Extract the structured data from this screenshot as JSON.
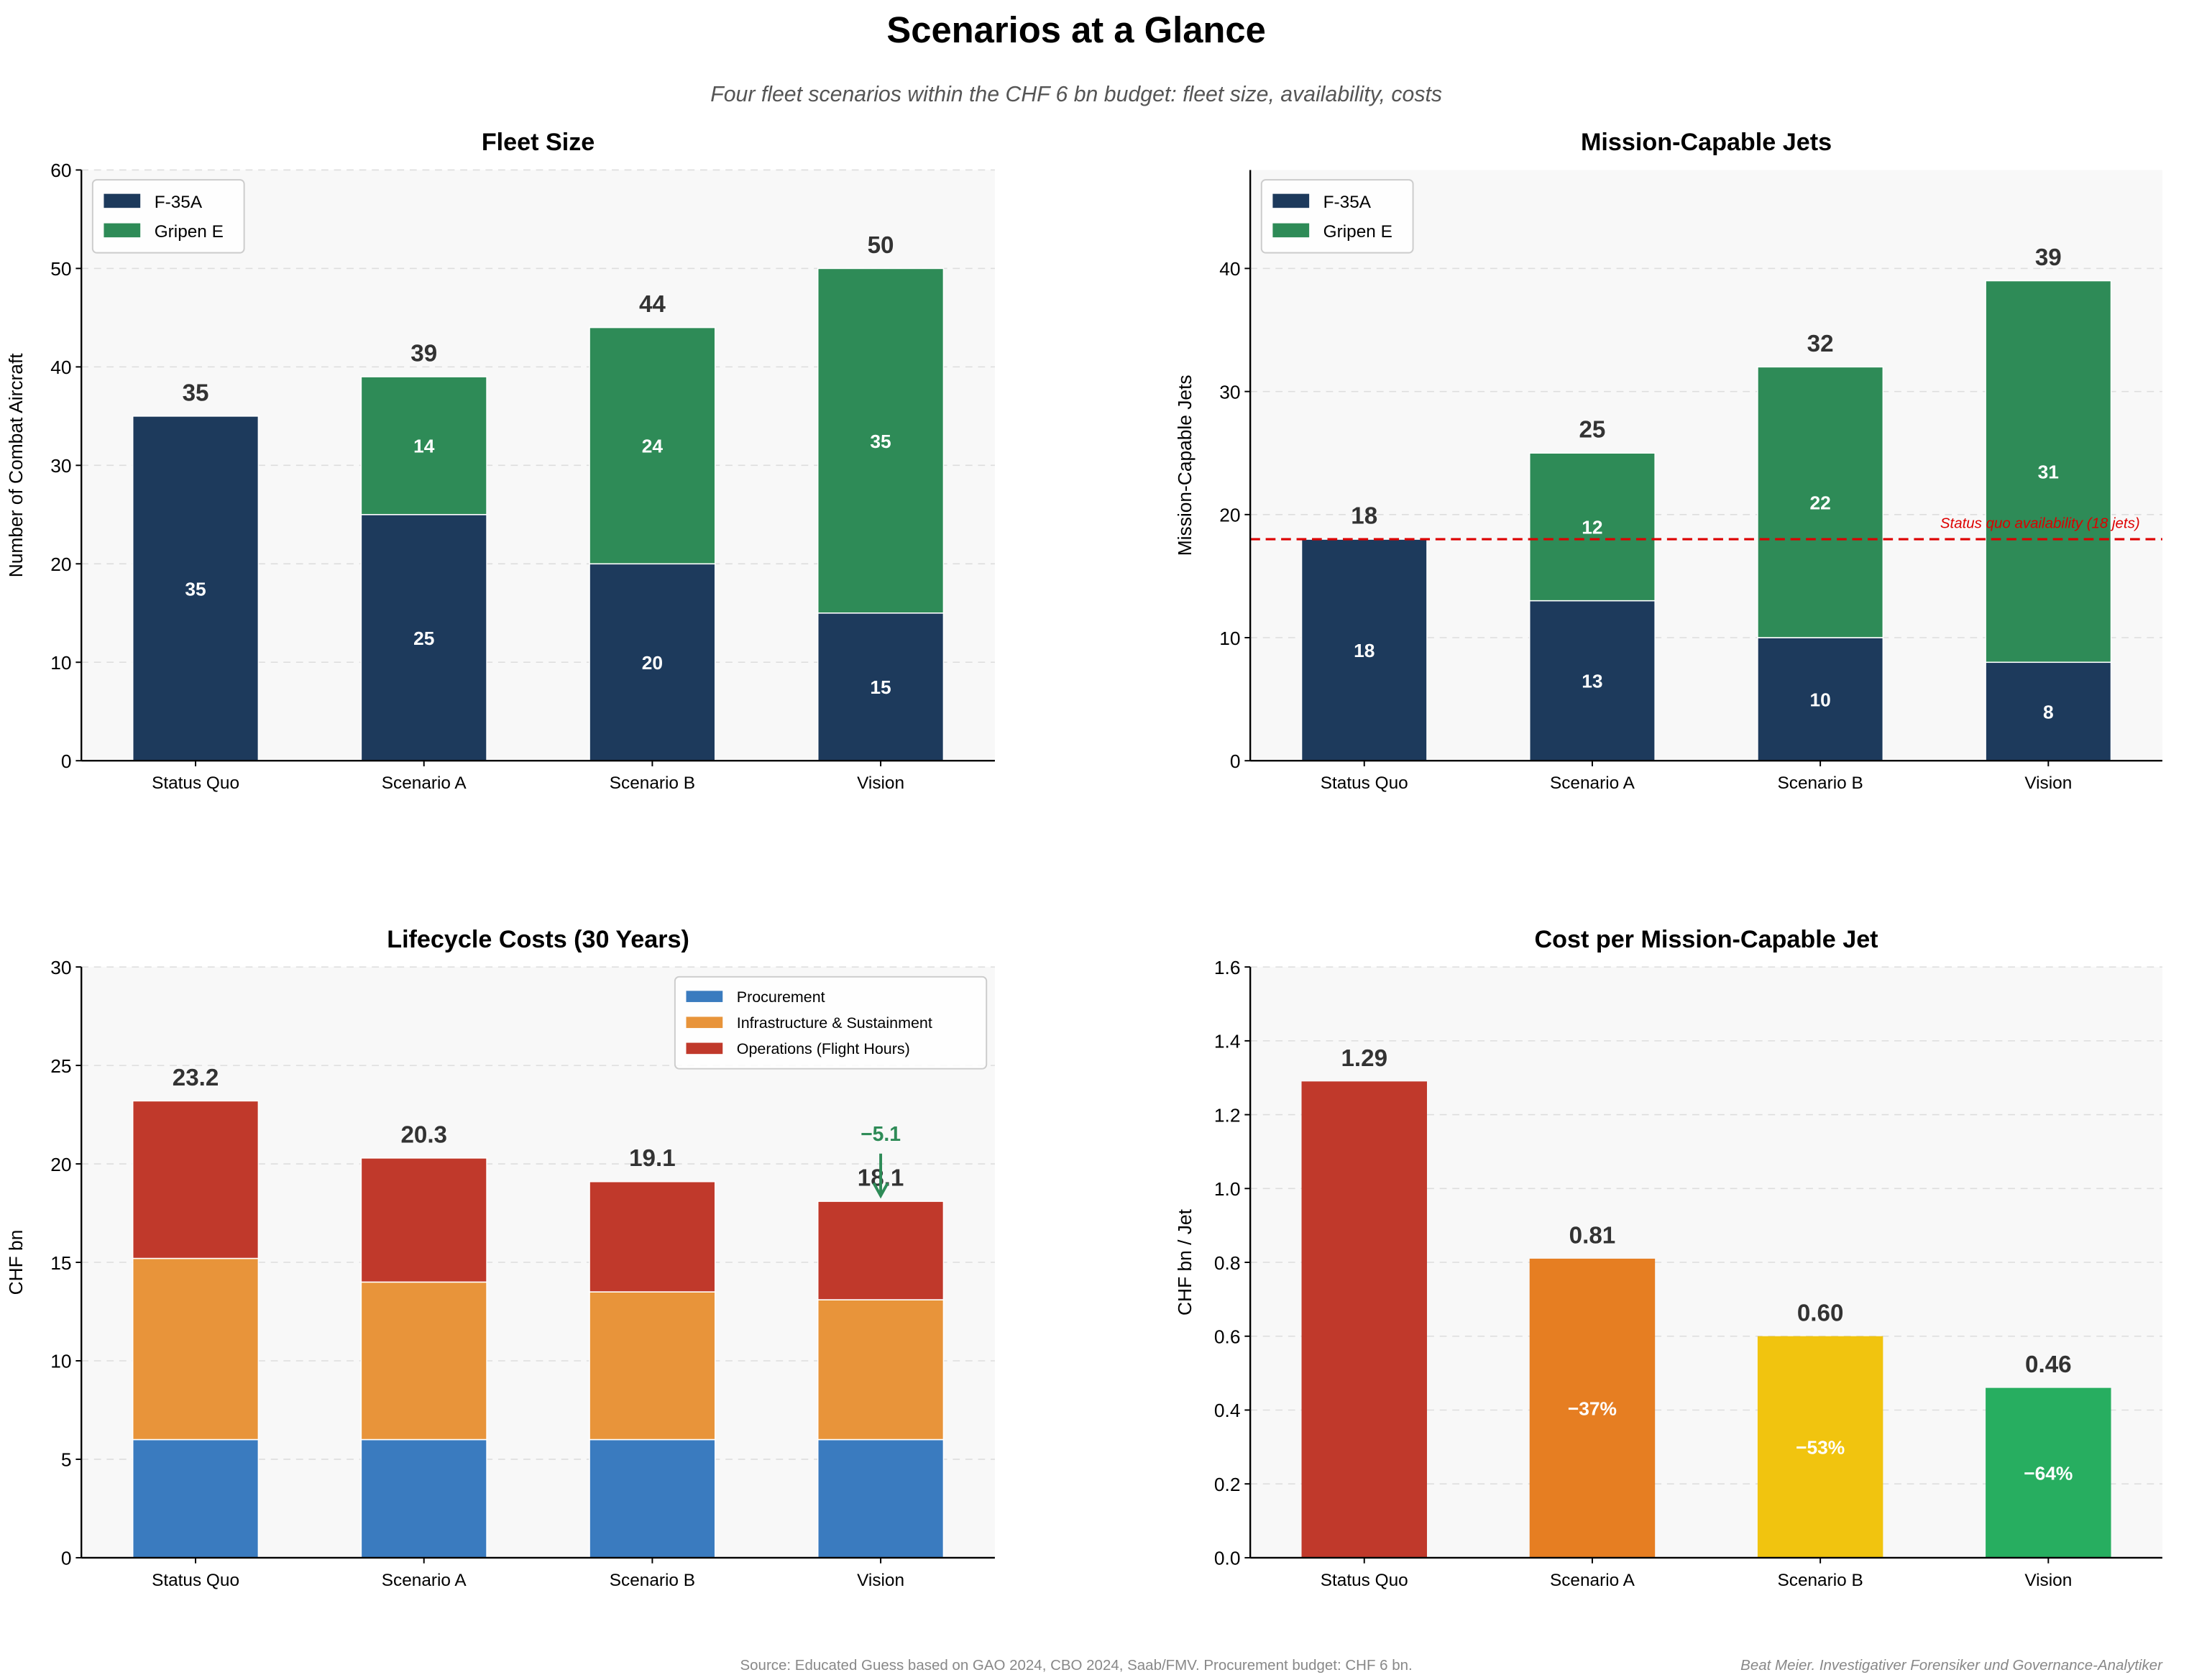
{
  "title": "Scenarios at a Glance",
  "subtitle": "Four fleet scenarios within the CHF 6 bn budget: fleet size, availability, costs",
  "footer": {
    "source": "Source: Educated Guess based on GAO 2024, CBO 2024, Saab/FMV. Procurement budget: CHF 6 bn.",
    "author": "Beat Meier. Investigativer Forensiker und Governance-Analytiker"
  },
  "chart_data": [
    {
      "type": "bar",
      "stacked": true,
      "title": "Fleet Size",
      "ylabel": "Number of Combat Aircraft",
      "xlabel": "",
      "ylim": [
        0,
        60
      ],
      "yticks": [
        0,
        10,
        20,
        30,
        40,
        50,
        60
      ],
      "grid": true,
      "legend": "top-left",
      "categories": [
        "Status Quo",
        "Scenario A",
        "Scenario B",
        "Vision"
      ],
      "series": [
        {
          "name": "F-35A",
          "color": "#1d3a5c",
          "values": [
            35,
            25,
            20,
            15
          ],
          "labels": [
            "35",
            "25",
            "20",
            "15"
          ]
        },
        {
          "name": "Gripen E",
          "color": "#2e8b57",
          "values": [
            0,
            14,
            24,
            35
          ],
          "labels": [
            "",
            "14",
            "24",
            "35"
          ]
        }
      ],
      "totals": [
        "35",
        "39",
        "44",
        "50"
      ]
    },
    {
      "type": "bar",
      "stacked": true,
      "title": "Mission-Capable Jets",
      "ylabel": "Mission-Capable Jets",
      "xlabel": "",
      "ylim": [
        0,
        48
      ],
      "yticks": [
        0,
        10,
        20,
        30,
        40
      ],
      "grid": true,
      "legend": "top-left",
      "categories": [
        "Status Quo",
        "Scenario A",
        "Scenario B",
        "Vision"
      ],
      "series": [
        {
          "name": "F-35A",
          "color": "#1d3a5c",
          "values": [
            18,
            13,
            10,
            8
          ],
          "labels": [
            "18",
            "13",
            "10",
            "8"
          ]
        },
        {
          "name": "Gripen E",
          "color": "#2e8b57",
          "values": [
            0,
            12,
            22,
            31
          ],
          "labels": [
            "",
            "12",
            "22",
            "31"
          ]
        }
      ],
      "totals": [
        "18",
        "25",
        "32",
        "39"
      ],
      "reference_line": {
        "value": 18,
        "color": "#dd0000",
        "label": "Status quo availability (18 jets)"
      }
    },
    {
      "type": "bar",
      "stacked": true,
      "title": "Lifecycle Costs (30 Years)",
      "ylabel": "CHF bn",
      "xlabel": "",
      "ylim": [
        0,
        30
      ],
      "yticks": [
        0,
        5,
        10,
        15,
        20,
        25,
        30
      ],
      "grid": true,
      "legend": "top-right",
      "categories": [
        "Status Quo",
        "Scenario A",
        "Scenario B",
        "Vision"
      ],
      "series": [
        {
          "name": "Procurement",
          "color": "#3a7bbf",
          "values": [
            6.0,
            6.0,
            6.0,
            6.0
          ]
        },
        {
          "name": "Infrastructure & Sustainment",
          "color": "#e8943a",
          "values": [
            9.2,
            8.0,
            7.5,
            7.1
          ]
        },
        {
          "name": "Operations (Flight Hours)",
          "color": "#c0392b",
          "values": [
            8.0,
            6.3,
            5.6,
            5.0
          ]
        }
      ],
      "totals": [
        "23.2",
        "20.3",
        "19.1",
        "18.1"
      ],
      "annotation": {
        "text": "−5.1",
        "color": "#2e8b57",
        "category": "Vision"
      }
    },
    {
      "type": "bar",
      "title": "Cost per Mission-Capable Jet",
      "ylabel": "CHF bn / Jet",
      "xlabel": "",
      "ylim": [
        0,
        1.6
      ],
      "yticks": [
        "0.0",
        "0.2",
        "0.4",
        "0.6",
        "0.8",
        "1.0",
        "1.2",
        "1.4",
        "1.6"
      ],
      "grid": true,
      "categories": [
        "Status Quo",
        "Scenario A",
        "Scenario B",
        "Vision"
      ],
      "values": [
        1.29,
        0.81,
        0.6,
        0.46
      ],
      "colors": [
        "#c0392b",
        "#e67e22",
        "#f1c40f",
        "#27ae60"
      ],
      "totals": [
        "1.29",
        "0.81",
        "0.60",
        "0.46"
      ],
      "change_labels": [
        "",
        "−37%",
        "−53%",
        "−64%"
      ]
    }
  ]
}
